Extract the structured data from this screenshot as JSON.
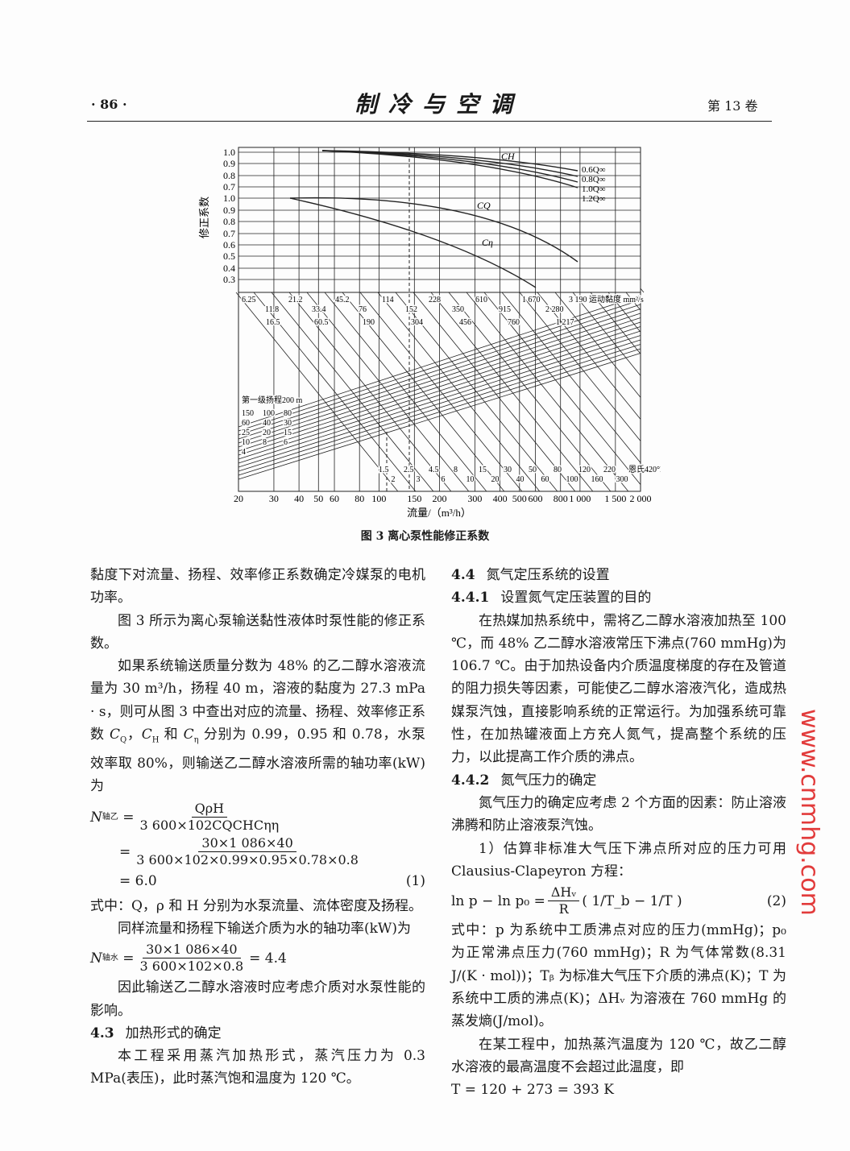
{
  "header": {
    "page": "· 86 ·",
    "journal": "制冷与空调",
    "volume": "第 13 卷"
  },
  "figure": {
    "caption": "图 3   离心泵性能修正系数",
    "ylabel": "修正系数",
    "xlabel": "流量/（m³/h）",
    "y_ticks_upper": [
      "1.0",
      "0.9",
      "0.8",
      "0.7"
    ],
    "y_ticks_lower": [
      "1.0",
      "0.9",
      "0.8",
      "0.7",
      "0.6",
      "0.5",
      "0.4",
      "0.3"
    ],
    "x_ticks": [
      "20",
      "30",
      "40",
      "50",
      "60",
      "80",
      "100",
      "150",
      "200",
      "300",
      "400",
      "500",
      "600",
      "800",
      "1 000",
      "1 500",
      "2 000"
    ],
    "x_values": [
      20,
      30,
      40,
      50,
      60,
      80,
      100,
      150,
      200,
      300,
      400,
      500,
      600,
      800,
      1000,
      1500,
      2000
    ],
    "curve_labels": {
      "ch": "CH",
      "cq": "CQ",
      "ceta": "Cη"
    },
    "ch_labels": [
      "0.6Q∞",
      "0.8Q∞",
      "1.0Q∞",
      "1.2Q∞"
    ],
    "viscosity_top": [
      "6.25",
      "11.8",
      "21.2",
      "33.4",
      "45.2",
      "76",
      "114",
      "152",
      "228",
      "350",
      "610",
      "915",
      "1 670",
      "2 280",
      "3 190 运动黏度 mm²/s"
    ],
    "viscosity_mid": [
      "16.5",
      "60.5",
      "190",
      "304",
      "456",
      "760",
      "1 217"
    ],
    "viscosity_bottom": [
      "1.5",
      "2",
      "2.5",
      "3",
      "4.5",
      "6",
      "8",
      "10",
      "15",
      "20",
      "30",
      "40",
      "50",
      "60",
      "80",
      "100",
      "120",
      "160",
      "220",
      "300",
      "恩氏420°E"
    ],
    "head_labels": [
      "第一级扬程200 m",
      "150",
      "100",
      "80",
      "60",
      "40",
      "30",
      "25",
      "20",
      "15",
      "10",
      "8",
      "6",
      "4"
    ],
    "accent": "#1a1a1a"
  },
  "left": {
    "p1": "黏度下对流量、扬程、效率修正系数确定冷媒泵的电机功率。",
    "p2": "图 3 所示为离心泵输送黏性液体时泵性能的修正系数。",
    "p3a": "如果系统输送质量分数为 48% 的乙二醇水溶液流量为 30 m³/h，扬程 40 m，溶液的黏度为 27.3 mPa · s，则可从图 3 中查出对应的流量、扬程、效率修正系数 ",
    "p3b": "分别为 0.99，0.95 和 0.78，水泵效率取 80%，则输送乙二醇水溶液所需的轴功率(kW)为",
    "eq1_lhs": "N",
    "eq1_lhs_sub": "轴乙",
    "eq1_num1": "QρH",
    "eq1_den1": "3 600×102CQCHCηη",
    "eq1_num2": "30×1 086×40",
    "eq1_den2": "3 600×102×0.99×0.95×0.78×0.8",
    "eq1_result": "= 6.0",
    "eq1_tag": "(1)",
    "p4": "式中：Q，ρ 和 H 分别为水泵流量、流体密度及扬程。",
    "p5": "同样流量和扬程下输送介质为水的轴功率(kW)为",
    "eq2_lhs_sub": "轴水",
    "eq2_num": "30×1 086×40",
    "eq2_den": "3 600×102×0.8",
    "eq2_result": "= 4.4",
    "p6": "因此输送乙二醇水溶液时应考虑介质对水泵性能的影响。",
    "h43_num": "4.3",
    "h43_title": "加热形式的确定",
    "p7": "本工程采用蒸汽加热形式，蒸汽压力为 0.3 MPa(表压)，此时蒸汽饱和温度为 120 ℃。"
  },
  "right": {
    "h44_num": "4.4",
    "h44_title": "氮气定压系统的设置",
    "h441_num": "4.4.1",
    "h441_title": "设置氮气定压装置的目的",
    "p1": "在热媒加热系统中，需将乙二醇水溶液加热至 100 ℃，而 48% 乙二醇水溶液常压下沸点(760 mmHg)为 106.7 ℃。由于加热设备内介质温度梯度的存在及管道的阻力损失等因素，可能使乙二醇水溶液汽化，造成热媒泵汽蚀，直接影响系统的正常运行。为加强系统可靠性，在加热罐液面上方充人氮气，提高整个系统的压力，以此提高工作介质的沸点。",
    "h442_num": "4.4.2",
    "h442_title": "氮气压力的确定",
    "p2": "氮气压力的确定应考虑 2 个方面的因素：防止溶液沸腾和防止溶液泵汽蚀。",
    "p3": "1）估算非标准大气压下沸点所对应的压力可用 Clausius-Clapeyron 方程：",
    "eq_lhs": "ln p − ln p₀ =",
    "eq_num": "ΔHᵥ",
    "eq_den": "R",
    "eq_paren": "( 1/T_b − 1/T )",
    "eq_tag": "(2)",
    "p4": "式中：p 为系统中工质沸点对应的压力(mmHg)；p₀ 为正常沸点压力(760 mmHg)；R 为气体常数(8.31 J/(K · mol))；Tᵦ 为标准大气压下介质的沸点(K)；T 为系统中工质的沸点(K)；ΔHᵥ 为溶液在 760 mmHg 的蒸发熵(J/mol)。",
    "p5": "在某工程中，加热蒸汽温度为 120 ℃，故乙二醇水溶液的最高温度不会超过此温度，即",
    "eq3": "T = 120 + 273 = 393 K"
  },
  "watermark": "www.cnmhg.com"
}
